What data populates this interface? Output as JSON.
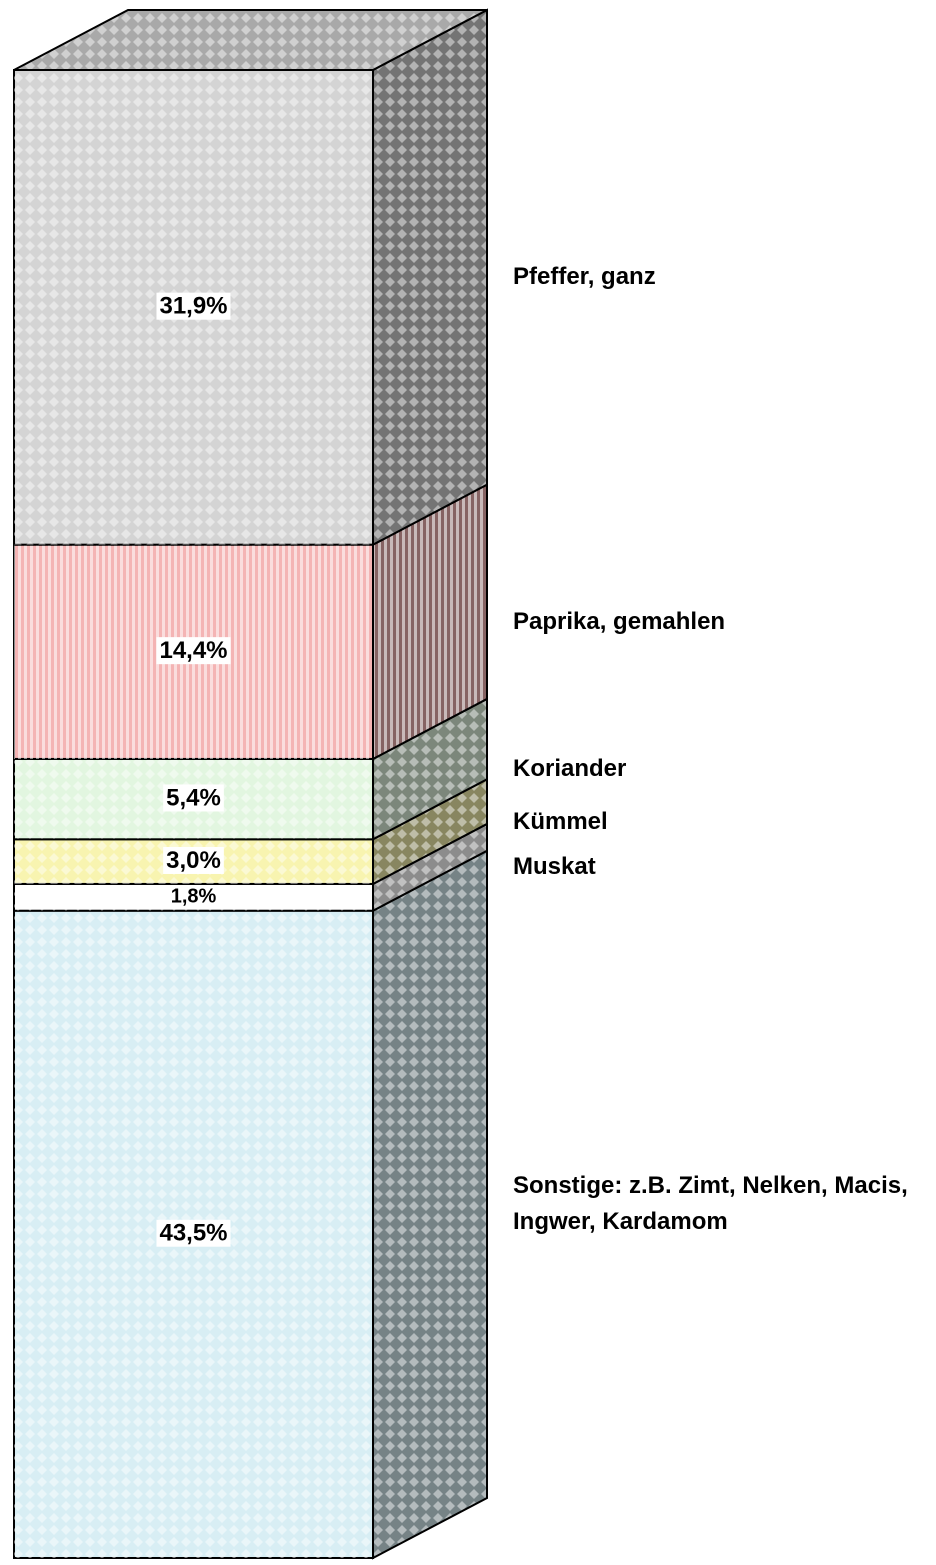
{
  "chart_data": {
    "type": "stacked_bar_3d",
    "series": [
      {
        "name": "Sonstige: z.B. Zimt, Nelken, Macis, Ingwer, Kardamom",
        "color": "#d8eef4",
        "values": [
          43.5
        ],
        "value_labels": [
          "43,5%"
        ]
      },
      {
        "name": "Muskat",
        "color": "#ffffff",
        "values": [
          1.8
        ],
        "value_labels": [
          "1,8%"
        ]
      },
      {
        "name": "Kümmel",
        "color": "#f8f4b0",
        "values": [
          3.0
        ],
        "value_labels": [
          "3,0%"
        ]
      },
      {
        "name": "Koriander",
        "color": "#e2f6e0",
        "values": [
          5.4
        ],
        "value_labels": [
          "5,4%"
        ]
      },
      {
        "name": "Paprika, gemahlen",
        "color": "#f4b4b4",
        "values": [
          14.4
        ],
        "value_labels": [
          "14,4%"
        ]
      },
      {
        "name": "Pfeffer, ganz",
        "color": "#d4d4d4",
        "values": [
          31.9
        ],
        "value_labels": [
          "31,9%"
        ]
      }
    ],
    "ylim": [
      0,
      100
    ]
  }
}
